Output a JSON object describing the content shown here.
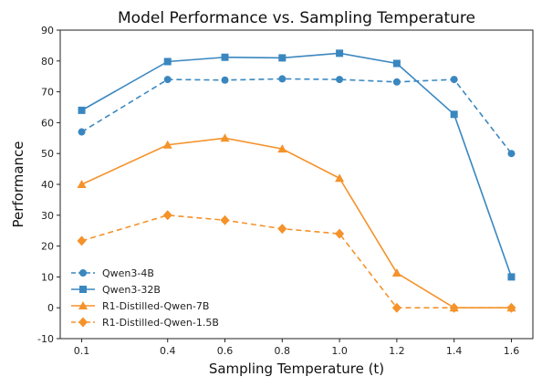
{
  "chart_data": {
    "type": "line",
    "title": "Model Performance vs. Sampling Temperature",
    "xlabel": "Sampling Temperature (t)",
    "ylabel": "Performance",
    "x": [
      0.1,
      0.4,
      0.6,
      0.8,
      1.0,
      1.2,
      1.4,
      1.6
    ],
    "x_tick_labels": [
      "0.1",
      "0.4",
      "0.6",
      "0.8",
      "1.0",
      "1.2",
      "1.4",
      "1.6"
    ],
    "xlim": [
      0.025,
      1.675
    ],
    "ylim": [
      -10,
      90
    ],
    "y_ticks": [
      -10,
      0,
      10,
      20,
      30,
      40,
      50,
      60,
      70,
      80,
      90
    ],
    "grid": false,
    "legend_position": "lower-left",
    "series": [
      {
        "name": "Qwen3-4B",
        "color": "#3a87c0",
        "line_style": "dashed",
        "marker": "circle",
        "values": [
          57,
          74,
          73.8,
          74.2,
          74,
          73.2,
          74,
          50
        ]
      },
      {
        "name": "Qwen3-32B",
        "color": "#3a87c0",
        "line_style": "solid",
        "marker": "square",
        "values": [
          64,
          79.8,
          81.2,
          81,
          82.5,
          79.2,
          62.7,
          10
        ]
      },
      {
        "name": "R1-Distilled-Qwen-7B",
        "color": "#f5922a",
        "line_style": "solid",
        "marker": "triangle",
        "values": [
          40,
          52.8,
          55,
          51.5,
          42,
          11.3,
          0,
          0
        ]
      },
      {
        "name": "R1-Distilled-Qwen-1.5B",
        "color": "#f5922a",
        "line_style": "dashed",
        "marker": "diamond",
        "values": [
          21.7,
          30,
          28.4,
          25.6,
          24,
          0,
          0,
          0
        ]
      }
    ]
  }
}
